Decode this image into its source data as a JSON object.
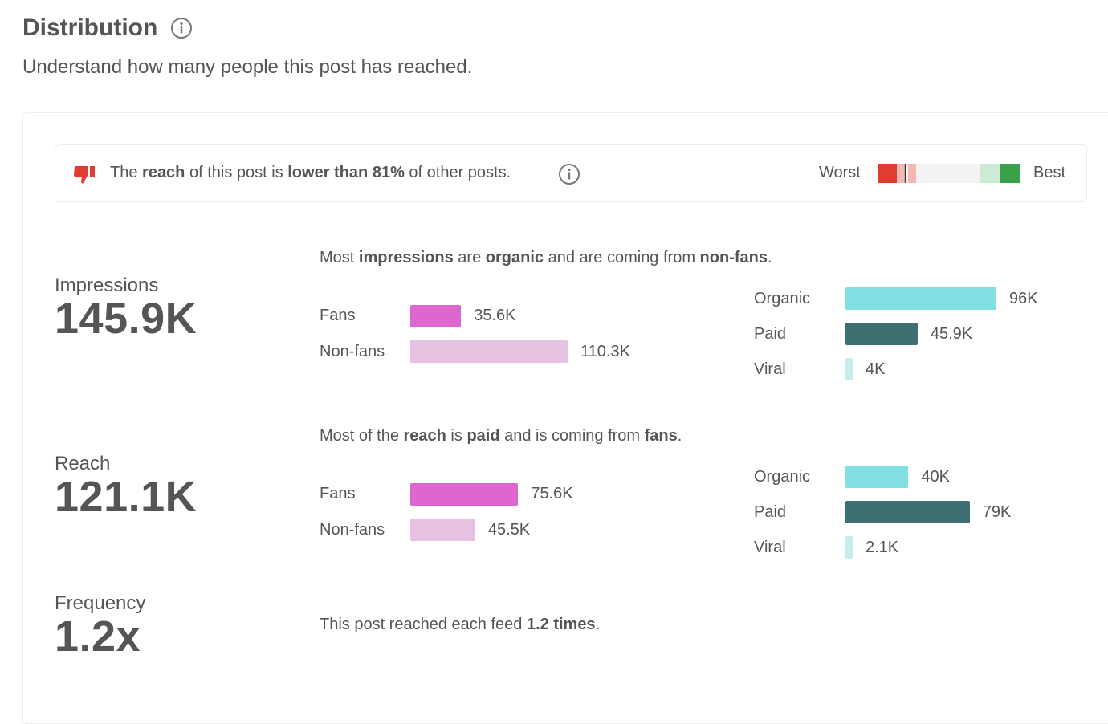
{
  "header": {
    "title": "Distribution",
    "subtitle": "Understand how many people this post has reached."
  },
  "notice": {
    "prefix": "The ",
    "metric": "reach",
    "middle": " of this post is ",
    "comparison": "lower than 81%",
    "suffix": " of other posts.",
    "worst_label": "Worst",
    "best_label": "Best",
    "percentile": 0.19,
    "colors": {
      "bad": "#e03c31",
      "good": "#3aa04a"
    }
  },
  "impressions": {
    "label": "Impressions",
    "value": "145.9K",
    "summary": {
      "p1": "Most ",
      "b1": "impressions",
      "p2": " are ",
      "b2": "organic",
      "p3": " and are coming from ",
      "b3": "non-fans",
      "p4": "."
    },
    "audience": [
      {
        "label": "Fans",
        "value": "35.6K",
        "amount": 35.6
      },
      {
        "label": "Non-fans",
        "value": "110.3K",
        "amount": 110.3
      }
    ],
    "source": [
      {
        "label": "Organic",
        "value": "96K",
        "amount": 96
      },
      {
        "label": "Paid",
        "value": "45.9K",
        "amount": 45.9
      },
      {
        "label": "Viral",
        "value": "4K",
        "amount": 4
      }
    ]
  },
  "reach": {
    "label": "Reach",
    "value": "121.1K",
    "summary": {
      "p1": "Most of the ",
      "b1": "reach",
      "p2": " is ",
      "b2": "paid",
      "p3": " and is coming from ",
      "b3": "fans",
      "p4": "."
    },
    "audience": [
      {
        "label": "Fans",
        "value": "75.6K",
        "amount": 75.6
      },
      {
        "label": "Non-fans",
        "value": "45.5K",
        "amount": 45.5
      }
    ],
    "source": [
      {
        "label": "Organic",
        "value": "40K",
        "amount": 40
      },
      {
        "label": "Paid",
        "value": "79K",
        "amount": 79
      },
      {
        "label": "Viral",
        "value": "2.1K",
        "amount": 2.1
      }
    ]
  },
  "frequency": {
    "label": "Frequency",
    "value": "1.2x",
    "summary": {
      "p1": "This post reached each feed ",
      "b1": "1.2 times",
      "p2": "."
    }
  },
  "colors": {
    "fans": "#de66cf",
    "non_fans": "#e6c2e1",
    "organic": "#82e0e3",
    "paid": "#3f6e70",
    "viral": "#c7ecee"
  }
}
